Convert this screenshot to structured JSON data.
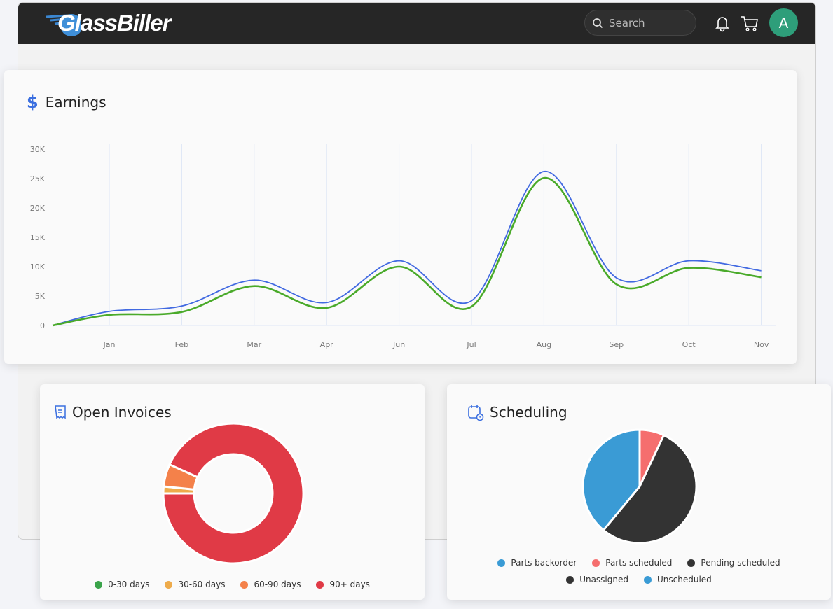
{
  "header": {
    "logo_text": "GlassBiller",
    "search_placeholder": "Search",
    "avatar_initial": "A",
    "icons": [
      "search-icon",
      "bell-icon",
      "cart-icon"
    ]
  },
  "earnings": {
    "title": "Earnings",
    "icon": "dollar-icon",
    "chart_data": {
      "type": "line",
      "categories": [
        "",
        "Jan",
        "Feb",
        "Mar",
        "Apr",
        "Jun",
        "Jul",
        "Aug",
        "Sep",
        "Oct",
        "Nov"
      ],
      "y_ticks": [
        "0",
        "5K",
        "10K",
        "15K",
        "20K",
        "25K",
        "30K"
      ],
      "ylim": [
        0,
        30000
      ],
      "grid": "vertical",
      "legend": "none",
      "series": [
        {
          "color": "#4169e1",
          "values": [
            0,
            2400,
            3300,
            7700,
            3900,
            11000,
            4200,
            26200,
            8100,
            11000,
            9300
          ]
        },
        {
          "color": "#4aaa2a",
          "values": [
            0,
            1800,
            2300,
            6700,
            3000,
            10000,
            3200,
            25100,
            7000,
            9800,
            8200
          ]
        }
      ]
    }
  },
  "invoices": {
    "title": "Open Invoices",
    "icon": "receipt-icon",
    "chart_data": {
      "type": "pie",
      "donut": true,
      "legend": "bottom",
      "slices": [
        {
          "label": "0-30 days",
          "value": 0,
          "color": "#3aa34a"
        },
        {
          "label": "30-60 days",
          "value": 1.6,
          "color": "#eeab4b"
        },
        {
          "label": "60-90 days",
          "value": 5.2,
          "color": "#f4814a"
        },
        {
          "label": "90+ days",
          "value": 93.2,
          "color": "#e03a46"
        }
      ]
    }
  },
  "scheduling": {
    "title": "Scheduling",
    "icon": "calendar-clock-icon",
    "chart_data": {
      "type": "pie",
      "legend": "bottom",
      "slices": [
        {
          "label": "Parts backorder",
          "value": 0,
          "color": "#3a9bd5"
        },
        {
          "label": "Parts scheduled",
          "value": 7,
          "color": "#f56e6e"
        },
        {
          "label": "Pending scheduled",
          "value": 54,
          "color": "#333333"
        },
        {
          "label": "Unassigned",
          "value": 0,
          "color": "#333333"
        },
        {
          "label": "Unscheduled",
          "value": 39,
          "color": "#3a9bd5"
        }
      ]
    }
  }
}
